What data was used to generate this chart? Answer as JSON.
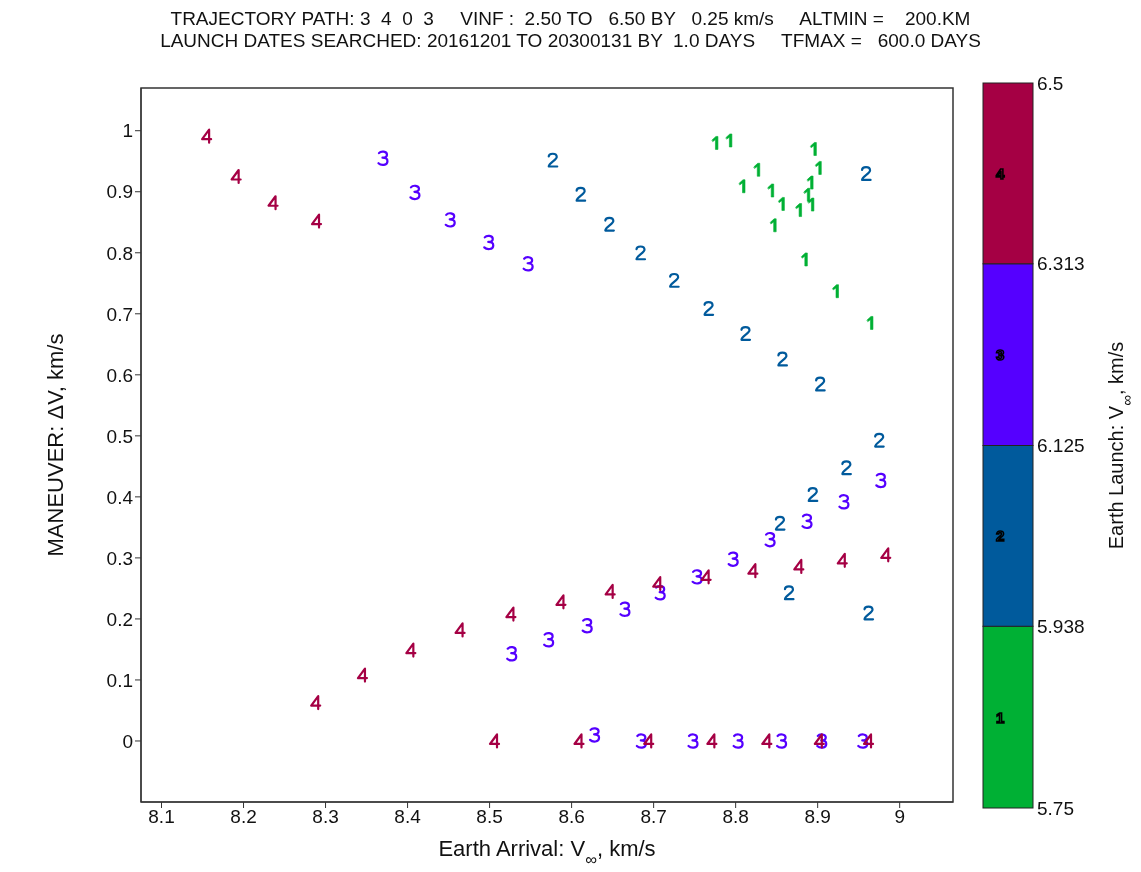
{
  "chart_data": {
    "type": "scatter",
    "title": "TRAJECTORY PATH: 3  4  0  3     VINF :  2.50 TO   6.50 BY   0.25 km/s     ALTMIN =    200.KM",
    "subtitle": "LAUNCH DATES SEARCHED: 20161201 TO 20300131 BY  1.0 DAYS     TFMAX =   600.0 DAYS",
    "xlabel": "Earth Arrival: V$_{∞}$, km/s",
    "ylabel": "MANEUVER: ΔV, km/s",
    "clabel": "Earth Launch: V$_{∞}$, km/s",
    "xlim": [
      8.075,
      9.065
    ],
    "xticks": [
      8.1,
      8.2,
      8.3,
      8.4,
      8.5,
      8.6,
      8.7,
      8.8,
      8.9,
      9
    ],
    "ylim": [
      -0.1,
      1.07
    ],
    "yticks": [
      0,
      0.1,
      0.2,
      0.3,
      0.4,
      0.5,
      0.6,
      0.7,
      0.8,
      0.9,
      1
    ],
    "clim": [
      5.75,
      6.5
    ],
    "cticks": [
      5.75,
      5.938,
      6.125,
      6.313,
      6.5
    ],
    "grid": false,
    "series": [
      {
        "name": "1",
        "color": "#00b034",
        "x": [
          8.775,
          8.792,
          8.895,
          8.826,
          8.901,
          8.808,
          8.843,
          8.891,
          8.856,
          8.887,
          8.877,
          8.892,
          8.846,
          8.884,
          8.922,
          8.964
        ],
        "values": [
          0.98,
          0.984,
          0.97,
          0.936,
          0.939,
          0.909,
          0.902,
          0.915,
          0.88,
          0.895,
          0.87,
          0.879,
          0.845,
          0.789,
          0.737,
          0.685
        ]
      },
      {
        "name": "2",
        "color": "#005a9c",
        "x": [
          8.577,
          8.611,
          8.646,
          8.684,
          8.725,
          8.767,
          8.812,
          8.857,
          8.903,
          8.959,
          8.975,
          8.854,
          8.894,
          8.935,
          8.865,
          8.962
        ],
        "values": [
          0.952,
          0.896,
          0.847,
          0.8,
          0.755,
          0.709,
          0.668,
          0.626,
          0.585,
          0.93,
          0.493,
          0.357,
          0.404,
          0.448,
          0.243,
          0.21
        ]
      },
      {
        "name": "3",
        "color": "#5500ff",
        "x": [
          8.37,
          8.409,
          8.452,
          8.499,
          8.547,
          8.527,
          8.572,
          8.619,
          8.665,
          8.708,
          8.753,
          8.797,
          8.842,
          8.887,
          8.932,
          8.977,
          8.628,
          8.685,
          8.748,
          8.803,
          8.856,
          8.905,
          8.955
        ],
        "values": [
          0.955,
          0.899,
          0.854,
          0.817,
          0.782,
          0.143,
          0.166,
          0.189,
          0.216,
          0.243,
          0.269,
          0.298,
          0.33,
          0.36,
          0.392,
          0.427,
          0.01,
          0,
          0,
          0,
          0,
          0,
          0
        ]
      },
      {
        "name": "4",
        "color": "#a50044",
        "x": [
          8.155,
          8.191,
          8.236,
          8.289,
          8.288,
          8.345,
          8.404,
          8.464,
          8.526,
          8.587,
          8.647,
          8.705,
          8.764,
          8.821,
          8.877,
          8.93,
          8.983,
          8.506,
          8.609,
          8.694,
          8.771,
          8.838,
          8.902,
          8.962
        ],
        "values": [
          0.991,
          0.925,
          0.882,
          0.852,
          0.063,
          0.108,
          0.149,
          0.182,
          0.208,
          0.228,
          0.245,
          0.258,
          0.269,
          0.279,
          0.286,
          0.296,
          0.305,
          0,
          0,
          0,
          0,
          0,
          0,
          0
        ]
      }
    ]
  }
}
